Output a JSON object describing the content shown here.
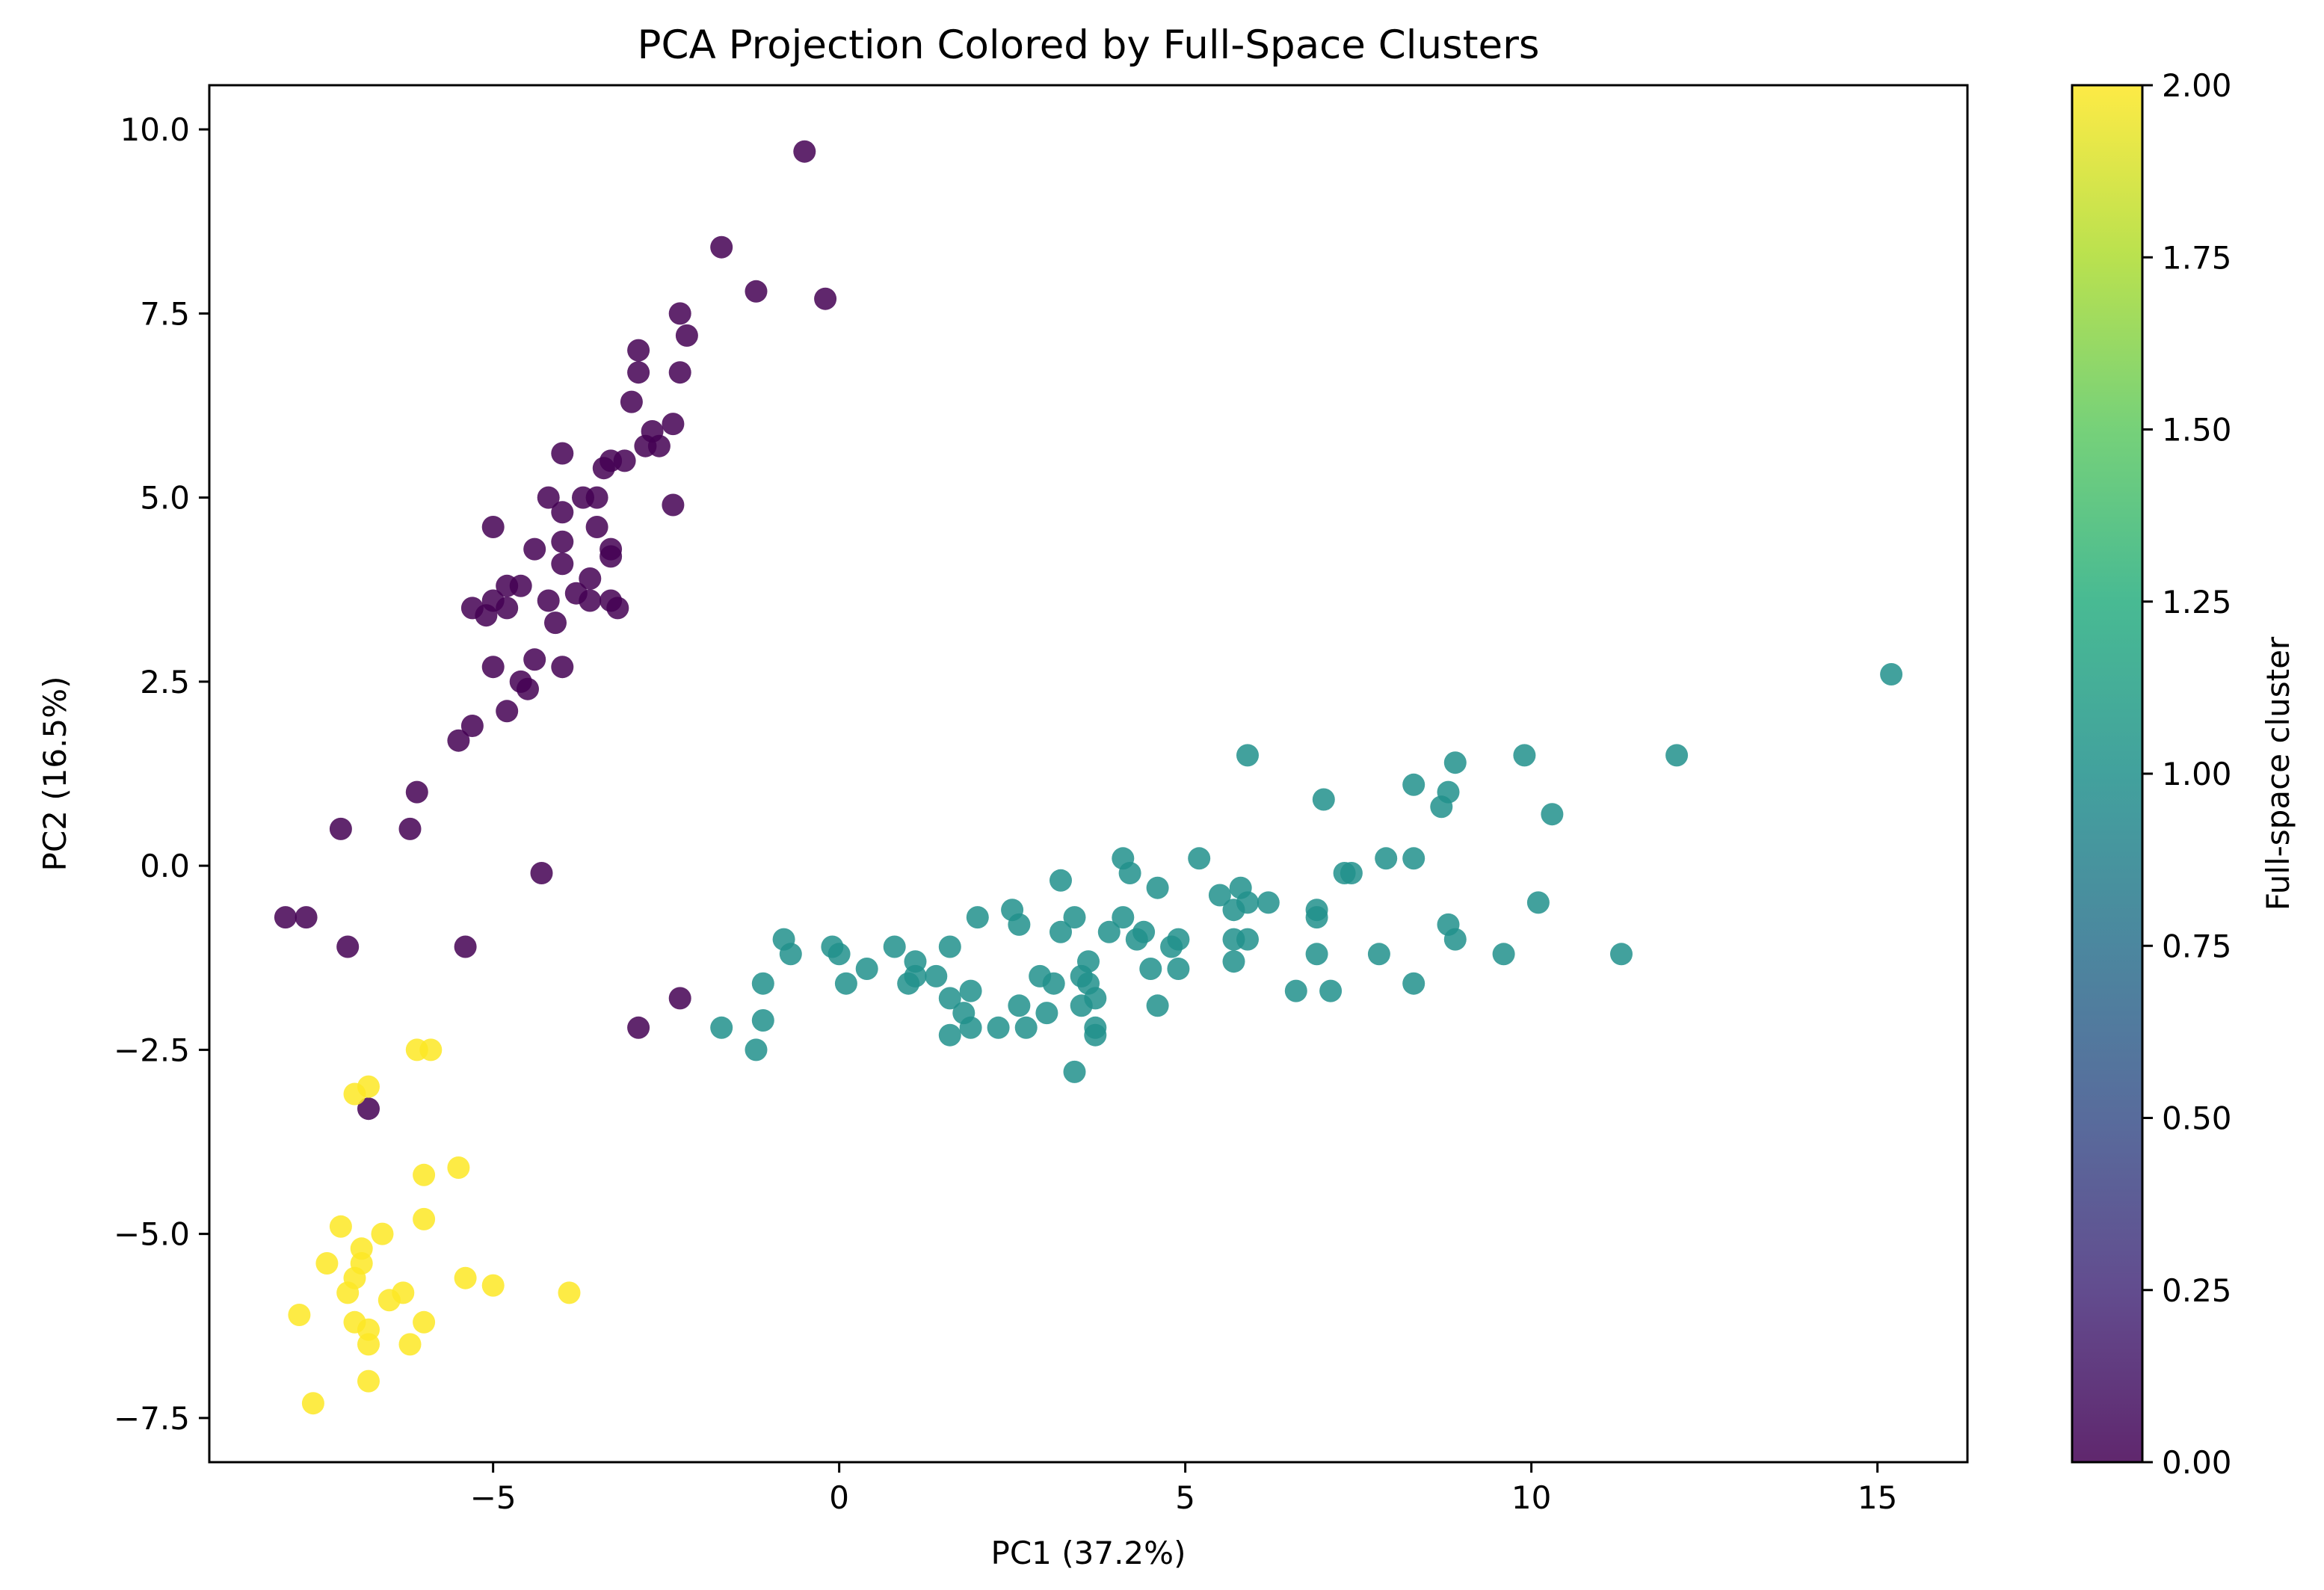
{
  "chart_data": {
    "type": "scatter",
    "title": "PCA Projection Colored by Full-Space Clusters",
    "xlabel": "PC1 (37.2%)",
    "ylabel": "PC2 (16.5%)",
    "xlim": [
      -9.1,
      16.3
    ],
    "ylim": [
      -8.1,
      10.6
    ],
    "xticks": [
      -5,
      0,
      5,
      10,
      15
    ],
    "xtick_labels": [
      "−5",
      "0",
      "5",
      "10",
      "15"
    ],
    "yticks": [
      -7.5,
      -5.0,
      -2.5,
      0.0,
      2.5,
      5.0,
      7.5,
      10.0
    ],
    "ytick_labels": [
      "−7.5",
      "−5.0",
      "−2.5",
      "0.0",
      "2.5",
      "5.0",
      "7.5",
      "10.0"
    ],
    "grid": false,
    "colormap": "viridis",
    "colorbar": {
      "label": "Full-space cluster",
      "range": [
        0.0,
        2.0
      ],
      "ticks": [
        0.0,
        0.25,
        0.5,
        0.75,
        1.0,
        1.25,
        1.5,
        1.75,
        2.0
      ],
      "tick_labels": [
        "0.00",
        "0.25",
        "0.50",
        "0.75",
        "1.00",
        "1.25",
        "1.50",
        "1.75",
        "2.00"
      ]
    },
    "cluster_colors": [
      "#440154",
      "#21918c",
      "#fde725"
    ],
    "series": [
      {
        "cluster": 0,
        "points": [
          [
            -0.5,
            9.7
          ],
          [
            -1.7,
            8.4
          ],
          [
            -1.2,
            7.8
          ],
          [
            -0.2,
            7.7
          ],
          [
            -2.3,
            7.5
          ],
          [
            -2.2,
            7.2
          ],
          [
            -2.9,
            7.0
          ],
          [
            -2.9,
            6.7
          ],
          [
            -2.3,
            6.7
          ],
          [
            -3.0,
            6.3
          ],
          [
            -2.4,
            6.0
          ],
          [
            -2.7,
            5.9
          ],
          [
            -2.6,
            5.7
          ],
          [
            -2.8,
            5.7
          ],
          [
            -4.0,
            5.6
          ],
          [
            -3.1,
            5.5
          ],
          [
            -3.3,
            5.5
          ],
          [
            -3.4,
            5.4
          ],
          [
            -4.2,
            5.0
          ],
          [
            -3.7,
            5.0
          ],
          [
            -3.5,
            5.0
          ],
          [
            -2.4,
            4.9
          ],
          [
            -4.0,
            4.8
          ],
          [
            -5.0,
            4.6
          ],
          [
            -3.5,
            4.6
          ],
          [
            -4.0,
            4.4
          ],
          [
            -3.3,
            4.3
          ],
          [
            -4.4,
            4.3
          ],
          [
            -3.3,
            4.2
          ],
          [
            -4.0,
            4.1
          ],
          [
            -3.6,
            3.9
          ],
          [
            -4.8,
            3.8
          ],
          [
            -4.6,
            3.8
          ],
          [
            -5.0,
            3.6
          ],
          [
            -3.8,
            3.7
          ],
          [
            -4.2,
            3.6
          ],
          [
            -3.6,
            3.6
          ],
          [
            -5.3,
            3.5
          ],
          [
            -4.8,
            3.5
          ],
          [
            -5.1,
            3.4
          ],
          [
            -3.3,
            3.6
          ],
          [
            -3.2,
            3.5
          ],
          [
            -4.1,
            3.3
          ],
          [
            -4.4,
            2.8
          ],
          [
            -4.0,
            2.7
          ],
          [
            -5.0,
            2.7
          ],
          [
            -4.6,
            2.5
          ],
          [
            -4.5,
            2.4
          ],
          [
            -4.8,
            2.1
          ],
          [
            -5.3,
            1.9
          ],
          [
            -5.5,
            1.7
          ],
          [
            -6.1,
            1.0
          ],
          [
            -7.2,
            0.5
          ],
          [
            -6.2,
            0.5
          ],
          [
            -4.3,
            -0.1
          ],
          [
            -8.0,
            -0.7
          ],
          [
            -7.7,
            -0.7
          ],
          [
            -7.1,
            -1.1
          ],
          [
            -5.4,
            -1.1
          ],
          [
            -2.3,
            -1.8
          ],
          [
            -2.9,
            -2.2
          ],
          [
            -6.8,
            -3.3
          ]
        ]
      },
      {
        "cluster": 1,
        "points": [
          [
            15.2,
            2.6
          ],
          [
            12.1,
            1.5
          ],
          [
            5.9,
            1.5
          ],
          [
            8.9,
            1.4
          ],
          [
            9.9,
            1.5
          ],
          [
            7.0,
            0.9
          ],
          [
            8.3,
            1.1
          ],
          [
            8.8,
            1.0
          ],
          [
            8.7,
            0.8
          ],
          [
            10.3,
            0.7
          ],
          [
            5.2,
            0.1
          ],
          [
            4.1,
            0.1
          ],
          [
            4.2,
            -0.1
          ],
          [
            7.3,
            -0.1
          ],
          [
            7.4,
            -0.1
          ],
          [
            7.9,
            0.1
          ],
          [
            8.3,
            0.1
          ],
          [
            3.2,
            -0.2
          ],
          [
            5.8,
            -0.3
          ],
          [
            4.6,
            -0.3
          ],
          [
            5.5,
            -0.4
          ],
          [
            6.2,
            -0.5
          ],
          [
            5.9,
            -0.5
          ],
          [
            5.7,
            -0.6
          ],
          [
            10.1,
            -0.5
          ],
          [
            6.9,
            -0.6
          ],
          [
            6.9,
            -0.7
          ],
          [
            2.0,
            -0.7
          ],
          [
            2.5,
            -0.6
          ],
          [
            3.4,
            -0.7
          ],
          [
            4.1,
            -0.7
          ],
          [
            2.6,
            -0.8
          ],
          [
            3.2,
            -0.9
          ],
          [
            4.4,
            -0.9
          ],
          [
            8.8,
            -0.8
          ],
          [
            -0.8,
            -1.0
          ],
          [
            3.9,
            -0.9
          ],
          [
            5.7,
            -1.0
          ],
          [
            4.9,
            -1.0
          ],
          [
            4.3,
            -1.0
          ],
          [
            4.8,
            -1.1
          ],
          [
            5.9,
            -1.0
          ],
          [
            -0.7,
            -1.2
          ],
          [
            -0.1,
            -1.1
          ],
          [
            0.8,
            -1.1
          ],
          [
            1.6,
            -1.1
          ],
          [
            6.9,
            -1.2
          ],
          [
            8.9,
            -1.0
          ],
          [
            7.8,
            -1.2
          ],
          [
            5.7,
            -1.3
          ],
          [
            9.6,
            -1.2
          ],
          [
            11.3,
            -1.2
          ],
          [
            0.0,
            -1.2
          ],
          [
            0.4,
            -1.4
          ],
          [
            1.1,
            -1.3
          ],
          [
            3.6,
            -1.3
          ],
          [
            4.5,
            -1.4
          ],
          [
            4.9,
            -1.4
          ],
          [
            1.1,
            -1.5
          ],
          [
            1.4,
            -1.5
          ],
          [
            2.9,
            -1.5
          ],
          [
            3.5,
            -1.5
          ],
          [
            -1.1,
            -1.6
          ],
          [
            0.1,
            -1.6
          ],
          [
            1.0,
            -1.6
          ],
          [
            3.1,
            -1.6
          ],
          [
            3.6,
            -1.6
          ],
          [
            1.9,
            -1.7
          ],
          [
            6.6,
            -1.7
          ],
          [
            7.1,
            -1.7
          ],
          [
            8.3,
            -1.6
          ],
          [
            1.6,
            -1.8
          ],
          [
            3.7,
            -1.8
          ],
          [
            3.5,
            -1.9
          ],
          [
            4.6,
            -1.9
          ],
          [
            2.6,
            -1.9
          ],
          [
            3.0,
            -2.0
          ],
          [
            1.8,
            -2.0
          ],
          [
            -1.1,
            -2.1
          ],
          [
            -1.7,
            -2.2
          ],
          [
            1.9,
            -2.2
          ],
          [
            2.3,
            -2.2
          ],
          [
            2.7,
            -2.2
          ],
          [
            3.7,
            -2.2
          ],
          [
            3.7,
            -2.3
          ],
          [
            1.6,
            -2.3
          ],
          [
            -1.2,
            -2.5
          ],
          [
            3.4,
            -2.8
          ]
        ]
      },
      {
        "cluster": 2,
        "points": [
          [
            -6.1,
            -2.5
          ],
          [
            -5.9,
            -2.5
          ],
          [
            -6.8,
            -3.0
          ],
          [
            -7.0,
            -3.1
          ],
          [
            -5.5,
            -4.1
          ],
          [
            -6.0,
            -4.2
          ],
          [
            -6.0,
            -4.8
          ],
          [
            -7.2,
            -4.9
          ],
          [
            -6.6,
            -5.0
          ],
          [
            -6.9,
            -5.2
          ],
          [
            -7.4,
            -5.4
          ],
          [
            -6.9,
            -5.4
          ],
          [
            -7.0,
            -5.6
          ],
          [
            -5.4,
            -5.6
          ],
          [
            -5.0,
            -5.7
          ],
          [
            -6.3,
            -5.8
          ],
          [
            -7.1,
            -5.8
          ],
          [
            -3.9,
            -5.8
          ],
          [
            -6.5,
            -5.9
          ],
          [
            -7.8,
            -6.1
          ],
          [
            -7.0,
            -6.2
          ],
          [
            -6.0,
            -6.2
          ],
          [
            -6.8,
            -6.3
          ],
          [
            -6.8,
            -6.5
          ],
          [
            -6.2,
            -6.5
          ],
          [
            -6.8,
            -7.0
          ],
          [
            -7.6,
            -7.3
          ]
        ]
      }
    ]
  }
}
